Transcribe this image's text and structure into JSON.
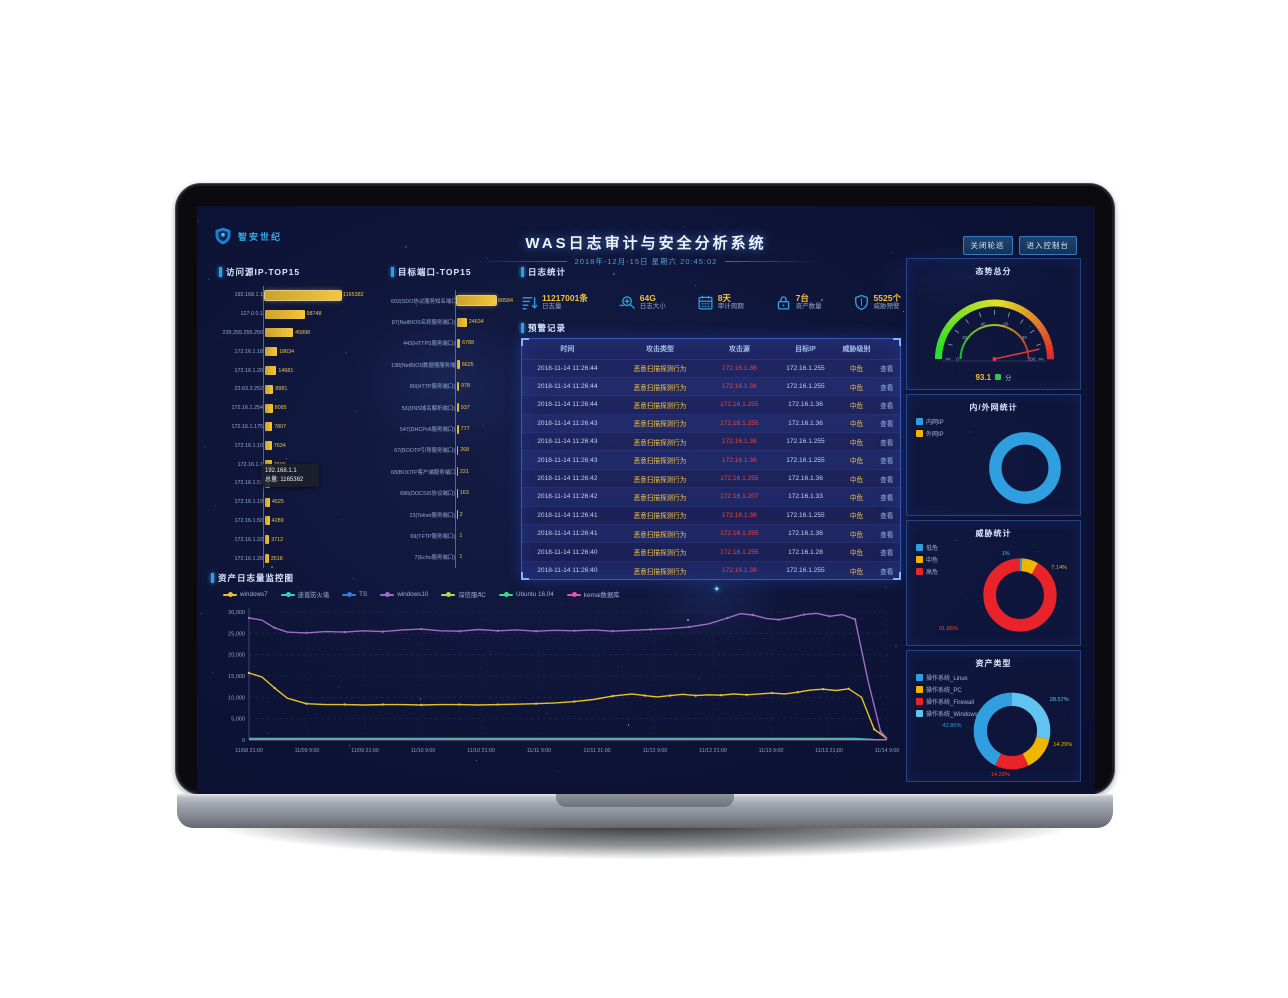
{
  "window": {
    "title": "WAS日志审计与安全分析系统",
    "subtitle": "2018年-12月-15日 星期六 20:45:02"
  },
  "brand": {
    "name": "智安世纪"
  },
  "header_buttons": [
    {
      "label": "关闭轮巡"
    },
    {
      "label": "进入控制台"
    }
  ],
  "stats": {
    "section_title": "日志统计",
    "items": [
      {
        "icon": "sort-icon",
        "value": "11217001条",
        "label": "日志量"
      },
      {
        "icon": "search-plus-icon",
        "value": "64G",
        "label": "日志大小"
      },
      {
        "icon": "calendar-icon",
        "value": "8天",
        "label": "审计周期"
      },
      {
        "icon": "lock-icon",
        "value": "7台",
        "label": "资产数量"
      },
      {
        "icon": "shield-icon",
        "value": "5525个",
        "label": "威胁预警"
      }
    ]
  },
  "tooltip": {
    "title": "192.168.1.1",
    "text": "总量: 1165382"
  },
  "alerts": {
    "section_title": "预警记录",
    "headers": [
      "时间",
      "攻击类型",
      "攻击源",
      "目标IP",
      "威胁级别",
      ""
    ],
    "action_label": "查看",
    "rows": [
      [
        "2018-11-14 11:26:44",
        "恶意扫描探测行为",
        "172.16.1.36",
        "172.16.1.255",
        "中危",
        "查看"
      ],
      [
        "2018-11-14 11:26:44",
        "恶意扫描探测行为",
        "172.16.1.36",
        "172.16.1.255",
        "中危",
        "查看"
      ],
      [
        "2018-11-14 11:26:44",
        "恶意扫描探测行为",
        "172.16.1.255",
        "172.16.1.36",
        "中危",
        "查看"
      ],
      [
        "2018-11-14 11:26:43",
        "恶意扫描探测行为",
        "172.16.1.255",
        "172.16.1.36",
        "中危",
        "查看"
      ],
      [
        "2018-11-14 11:26:43",
        "恶意扫描探测行为",
        "172.16.1.36",
        "172.16.1.255",
        "中危",
        "查看"
      ],
      [
        "2018-11-14 11:26:43",
        "恶意扫描探测行为",
        "172.16.1.36",
        "172.16.1.255",
        "中危",
        "查看"
      ],
      [
        "2018-11-14 11:26:42",
        "恶意扫描探测行为",
        "172.16.1.255",
        "172.16.1.36",
        "中危",
        "查看"
      ],
      [
        "2018-11-14 11:26:42",
        "恶意扫描探测行为",
        "172.16.1.207",
        "172.16.1.33",
        "中危",
        "查看"
      ],
      [
        "2018-11-14 11:26:41",
        "恶意扫描探测行为",
        "172.16.1.36",
        "172.16.1.255",
        "中危",
        "查看"
      ],
      [
        "2018-11-14 11:26:41",
        "恶意扫描探测行为",
        "172.16.1.255",
        "172.16.1.36",
        "中危",
        "查看"
      ],
      [
        "2018-11-14 11:26:40",
        "恶意扫描探测行为",
        "172.16.1.255",
        "172.16.1.28",
        "中危",
        "查看"
      ],
      [
        "2018-11-14 11:26:40",
        "恶意扫描探测行为",
        "172.16.1.36",
        "172.16.1.255",
        "中危",
        "查看"
      ]
    ]
  },
  "chart_data": [
    {
      "id": "source_ip_top15",
      "type": "bar",
      "orientation": "horizontal",
      "title": "访问源IP-TOP15",
      "categories": [
        "192.168.1.1",
        "127.0.0.1",
        "239.255.255.250",
        "172.16.1.18",
        "172.16.1.20",
        "23.63.3.252",
        "172.16.1.254",
        "172.16.1.175",
        "172.16.1.10",
        "172.16.1.1",
        "172.16.1.52",
        "172.16.1.19",
        "172.16.1.50",
        "172.16.1.33",
        "172.16.1.28"
      ],
      "values": [
        1165382,
        98748,
        45898,
        18634,
        14681,
        8881,
        8085,
        7807,
        7634,
        7600,
        4674,
        4525,
        4289,
        3712,
        3518
      ],
      "bar_pct": [
        100,
        52,
        37,
        16,
        15,
        11,
        10,
        9.5,
        9,
        9,
        7,
        6.5,
        6,
        5.5,
        5
      ],
      "bar_color": "#f5c63a"
    },
    {
      "id": "dest_port_top15",
      "type": "bar",
      "orientation": "horizontal",
      "title": "目标端口-TOP15",
      "categories": [
        "602(SDO协议服务知名端口)",
        "87(NetBIOS名称服务端口)",
        "443(HTTPS服务端口)",
        "138(NetBIOS数据报服务端口)",
        "80(HTTP服务端口)",
        "53(DNS域名解析端口)",
        "547(DHCPv6服务端口)",
        "67(BOOTP引导服务端口)",
        "68(BOOTP客户端服务端口)",
        "686(DOCSIS协议端口)",
        "23(Telnet服务端口)",
        "69(TFTP服务端口)",
        "7(Echo服务端口)"
      ],
      "values": [
        68584,
        24634,
        6788,
        6625,
        978,
        937,
        777,
        268,
        221,
        163,
        2,
        1,
        1
      ],
      "bar_pct": [
        100,
        25,
        8,
        7,
        5,
        4.5,
        4,
        3,
        2.5,
        2,
        1.5,
        1,
        1
      ],
      "bar_color": "#f5c63a"
    },
    {
      "id": "situation_gauge",
      "type": "gauge",
      "title": "态势总分",
      "value": 93.1,
      "min": 0,
      "max": 100,
      "unit": "分",
      "status_color": "#35c24d",
      "axis_numbers": [
        0,
        20,
        40,
        60,
        80,
        100
      ]
    },
    {
      "id": "inout_donut",
      "type": "pie",
      "title": "内/外网统计",
      "slices": [
        {
          "name": "内网IP",
          "pct": 100,
          "color": "#2f9fe0"
        },
        {
          "name": "外网IP",
          "pct": 0,
          "color": "#f0b500"
        }
      ],
      "labels": [
        {
          "text": "100%",
          "color": "#2f9fe0",
          "x": 70,
          "y": 88
        }
      ]
    },
    {
      "id": "threat_donut",
      "type": "pie",
      "title": "威胁统计",
      "slices": [
        {
          "name": "低危",
          "pct": 1,
          "color": "#2f9fe0"
        },
        {
          "name": "中危",
          "pct": 7.14,
          "color": "#f0b500"
        },
        {
          "name": "高危",
          "pct": 91.86,
          "color": "#e8232a"
        }
      ],
      "labels": [
        {
          "text": "1%",
          "color": "#4db8ff",
          "x": 57,
          "y": 27
        },
        {
          "text": "7.14%",
          "color": "#f0b500",
          "x": 88,
          "y": 38
        },
        {
          "text": "91.86%",
          "color": "#e8453c",
          "x": 24,
          "y": 87
        }
      ]
    },
    {
      "id": "asset_donut",
      "type": "pie",
      "title": "资产类型",
      "slices": [
        {
          "name": "操作系统_Linux",
          "pct": 42.86,
          "color": "#2f9fe0"
        },
        {
          "name": "操作系统_PC",
          "pct": 14.29,
          "color": "#f0b500"
        },
        {
          "name": "操作系统_Firewall",
          "pct": 14.29,
          "color": "#e8232a"
        },
        {
          "name": "操作系统_Windows",
          "pct": 28.57,
          "color": "#63c3f0"
        }
      ],
      "draw_order": [
        3,
        1,
        2,
        0
      ],
      "labels": [
        {
          "text": "28.57%",
          "color": "#63c3f0",
          "x": 88,
          "y": 38
        },
        {
          "text": "14.29%",
          "color": "#f0b500",
          "x": 90,
          "y": 72
        },
        {
          "text": "14.29%",
          "color": "#e8453c",
          "x": 54,
          "y": 95
        },
        {
          "text": "42.86%",
          "color": "#2f9fe0",
          "x": 26,
          "y": 58
        }
      ]
    },
    {
      "id": "log_monitor_line",
      "type": "line",
      "title": "资产日志量监控图",
      "ylim": [
        0,
        30000
      ],
      "yticks": [
        0,
        5000,
        10000,
        15000,
        20000,
        25000,
        30000
      ],
      "xticks": [
        "11/08 21:00",
        "11/09 9:00",
        "11/09 21:00",
        "11/10 9:00",
        "11/10 21:00",
        "11/11 9:00",
        "11/11 21:00",
        "11/12 9:00",
        "11/12 21:00",
        "11/13 9:00",
        "11/13 21:00",
        "11/14 9:00"
      ],
      "grid": true,
      "legend_position": "top",
      "series": [
        {
          "name": "windows7",
          "color": "#e6c229",
          "major": true,
          "points": [
            [
              0,
              15700
            ],
            [
              2,
              14800
            ],
            [
              4,
              12200
            ],
            [
              6,
              9800
            ],
            [
              9,
              8500
            ],
            [
              12,
              8300
            ],
            [
              15,
              8300
            ],
            [
              18,
              8200
            ],
            [
              21,
              8300
            ],
            [
              24,
              8300
            ],
            [
              27,
              8200
            ],
            [
              30,
              8300
            ],
            [
              33,
              8300
            ],
            [
              36,
              8200
            ],
            [
              39,
              8300
            ],
            [
              42,
              8400
            ],
            [
              45,
              8500
            ],
            [
              48,
              8700
            ],
            [
              51,
              9000
            ],
            [
              54,
              9500
            ],
            [
              57,
              10300
            ],
            [
              60,
              10800
            ],
            [
              62,
              10400
            ],
            [
              64,
              10100
            ],
            [
              66,
              10400
            ],
            [
              68,
              10700
            ],
            [
              70,
              10400
            ],
            [
              72,
              10600
            ],
            [
              74,
              10500
            ],
            [
              76,
              10800
            ],
            [
              78,
              10600
            ],
            [
              80,
              10800
            ],
            [
              82,
              11000
            ],
            [
              84,
              10800
            ],
            [
              86,
              11200
            ],
            [
              88,
              11700
            ],
            [
              90,
              11900
            ],
            [
              92,
              11600
            ],
            [
              94,
              12000
            ],
            [
              96,
              10000
            ],
            [
              98,
              2500
            ],
            [
              100,
              300
            ]
          ]
        },
        {
          "name": "迪普防火墙",
          "color": "#35d0ba",
          "major": false,
          "points": [
            [
              0,
              420
            ],
            [
              20,
              400
            ],
            [
              40,
              430
            ],
            [
              60,
              410
            ],
            [
              80,
              430
            ],
            [
              95,
              400
            ],
            [
              98,
              150
            ],
            [
              100,
              60
            ]
          ]
        },
        {
          "name": "TS",
          "color": "#3a7bd5",
          "major": false,
          "points": [
            [
              0,
              260
            ],
            [
              25,
              250
            ],
            [
              50,
              260
            ],
            [
              75,
              250
            ],
            [
              95,
              240
            ],
            [
              98,
              90
            ],
            [
              100,
              40
            ]
          ]
        },
        {
          "name": "windows10",
          "color": "#a06cc7",
          "major": true,
          "points": [
            [
              0,
              28600
            ],
            [
              2,
              28100
            ],
            [
              4,
              26300
            ],
            [
              6,
              25300
            ],
            [
              9,
              25100
            ],
            [
              12,
              25400
            ],
            [
              15,
              25300
            ],
            [
              18,
              25600
            ],
            [
              21,
              25400
            ],
            [
              24,
              25800
            ],
            [
              27,
              26000
            ],
            [
              30,
              25600
            ],
            [
              33,
              25500
            ],
            [
              36,
              25900
            ],
            [
              39,
              25600
            ],
            [
              42,
              25800
            ],
            [
              45,
              25500
            ],
            [
              48,
              25700
            ],
            [
              51,
              25600
            ],
            [
              54,
              25800
            ],
            [
              57,
              25500
            ],
            [
              60,
              25700
            ],
            [
              63,
              25900
            ],
            [
              66,
              26100
            ],
            [
              69,
              26500
            ],
            [
              72,
              27200
            ],
            [
              75,
              28600
            ],
            [
              77,
              29600
            ],
            [
              79,
              29300
            ],
            [
              81,
              28500
            ],
            [
              83,
              28200
            ],
            [
              85,
              28700
            ],
            [
              87,
              29400
            ],
            [
              89,
              29700
            ],
            [
              91,
              29000
            ],
            [
              93,
              29400
            ],
            [
              95,
              28300
            ],
            [
              97,
              14000
            ],
            [
              99,
              2000
            ],
            [
              100,
              400
            ]
          ]
        },
        {
          "name": "深信服AC",
          "color": "#b8d44a",
          "major": false,
          "points": [
            [
              0,
              180
            ],
            [
              30,
              170
            ],
            [
              60,
              180
            ],
            [
              90,
              170
            ],
            [
              96,
              150
            ],
            [
              100,
              30
            ]
          ]
        },
        {
          "name": "Ubuntu 16.04",
          "color": "#3ddc84",
          "major": false,
          "points": [
            [
              0,
              120
            ],
            [
              40,
              110
            ],
            [
              80,
              120
            ],
            [
              96,
              100
            ],
            [
              100,
              20
            ]
          ]
        },
        {
          "name": "kemai数据库",
          "color": "#e256ae",
          "major": false,
          "points": [
            [
              0,
              70
            ],
            [
              50,
              60
            ],
            [
              96,
              60
            ],
            [
              100,
              10
            ]
          ]
        }
      ]
    }
  ]
}
